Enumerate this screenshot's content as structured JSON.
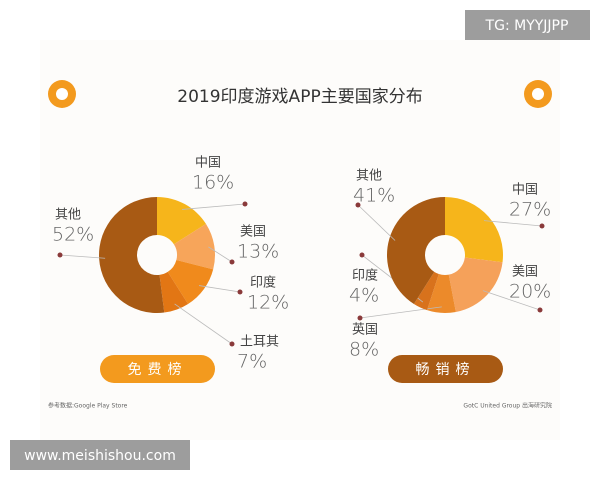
{
  "title": "2019印度游戏APP主要国家分布",
  "chart_data": [
    {
      "type": "pie",
      "title": "免费榜",
      "categories": [
        "中国",
        "美国",
        "印度",
        "土耳其",
        "其他"
      ],
      "values": [
        16,
        13,
        12,
        7,
        52
      ],
      "value_labels": [
        "16%",
        "13%",
        "12%",
        "7%",
        "52%"
      ],
      "colors": [
        "#f6b51b",
        "#f7a55a",
        "#f08a1c",
        "#e27614",
        "#a85a14"
      ],
      "button_color": "#f39a1e"
    },
    {
      "type": "pie",
      "title": "畅销榜",
      "categories": [
        "中国",
        "美国",
        "英国",
        "印度",
        "其他"
      ],
      "values": [
        27,
        20,
        8,
        4,
        41
      ],
      "value_labels": [
        "27%",
        "20%",
        "8%",
        "4%",
        "41%"
      ],
      "colors": [
        "#f6b51b",
        "#f5a15a",
        "#ec8a2a",
        "#d8721c",
        "#a85a14"
      ],
      "button_color": "#a85a14"
    }
  ],
  "source_left": "参考数据:Google Play Store",
  "source_right": "GotC United Group 出海研究院",
  "watermark_top": "TG: MYYJJPP",
  "watermark_bottom": "www.meishishou.com"
}
